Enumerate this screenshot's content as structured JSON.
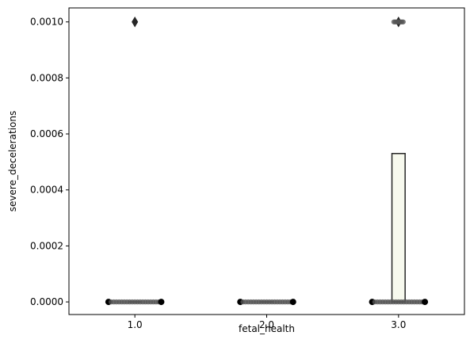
{
  "chart_data": {
    "type": "box",
    "title": "",
    "xlabel": "fetal_health",
    "ylabel": "severe_decelerations",
    "categories": [
      "1.0",
      "2.0",
      "3.0"
    ],
    "ylim": [
      -4.5e-05,
      0.00105
    ],
    "yticks": [
      0.0,
      0.0002,
      0.0004,
      0.0006,
      0.0008,
      0.001
    ],
    "ytick_labels": [
      "0.0000",
      "0.0002",
      "0.0004",
      "0.0006",
      "0.0008",
      "0.0010"
    ],
    "grid": false,
    "legend": "none",
    "boxes": [
      {
        "category": "1.0",
        "q1": 0.0,
        "median": 0.0,
        "q3": 0.0,
        "whisker_low": 0.0,
        "whisker_high": 0.0,
        "fliers": [
          0.001
        ]
      },
      {
        "category": "2.0",
        "q1": 0.0,
        "median": 0.0,
        "q3": 0.0,
        "whisker_low": 0.0,
        "whisker_high": 0.0,
        "fliers": []
      },
      {
        "category": "3.0",
        "q1": 0.0,
        "median": 0.0,
        "q3": 0.00053,
        "whisker_low": 0.0,
        "whisker_high": 0.00053,
        "fliers": [
          0.001
        ]
      }
    ],
    "swarm": [
      {
        "category": "1.0",
        "value": 0.0,
        "count": 21,
        "spread": 0.4
      },
      {
        "category": "2.0",
        "value": 0.0,
        "count": 21,
        "spread": 0.4
      },
      {
        "category": "3.0",
        "value": 0.0,
        "count": 21,
        "spread": 0.4
      },
      {
        "category": "3.0",
        "value": 0.001,
        "count": 7,
        "spread": 0.07
      }
    ],
    "colors": {
      "box_fill": "#f7f9ee",
      "box_edge": "#262626",
      "swarm_point": "#555555",
      "swarm_edge_point": "#000000",
      "flier": "#262626",
      "axes": "#000000"
    }
  }
}
